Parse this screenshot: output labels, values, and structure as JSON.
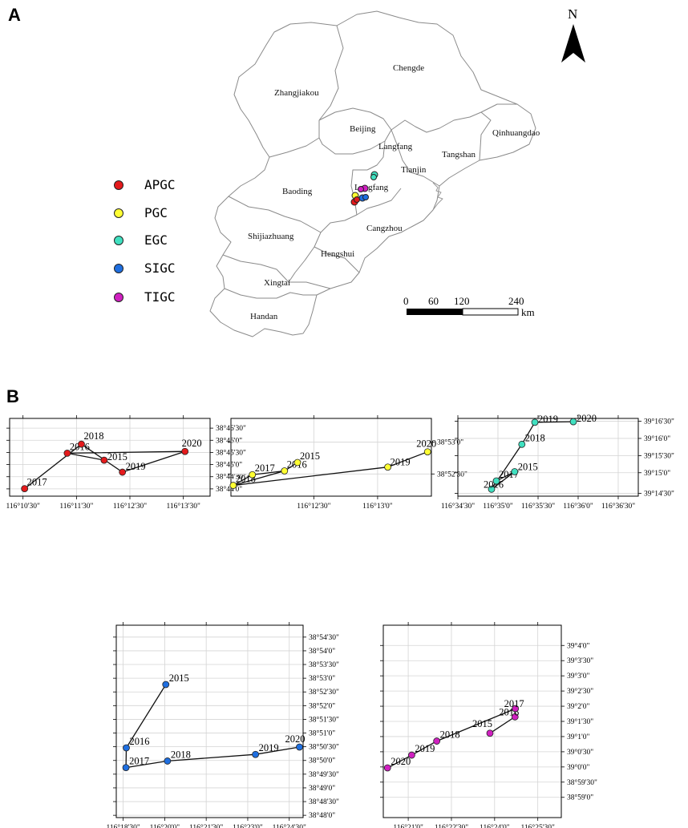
{
  "panel_labels": {
    "a": "A",
    "b": "B"
  },
  "north_label": "N",
  "regions": [
    "Chengde",
    "Zhangjiakou",
    "Beijing",
    "Langfang",
    "Qinhuangdao",
    "Tangshan",
    "Tianjin",
    "Langfang",
    "Baoding",
    "Cangzhou",
    "Shijiazhuang",
    "Hengshui",
    "Xingtai",
    "Handan"
  ],
  "legend": [
    {
      "label": "APGC",
      "color": "#e41a1c"
    },
    {
      "label": "PGC",
      "color": "#ffff33"
    },
    {
      "label": "EGC",
      "color": "#40e0c0"
    },
    {
      "label": "SIGC",
      "color": "#1f6fe0"
    },
    {
      "label": "TIGC",
      "color": "#d020c0"
    }
  ],
  "scale_bar": {
    "ticks": [
      "0",
      "60",
      "120",
      "240"
    ],
    "unit": "km"
  },
  "chart_data": [
    {
      "type": "line",
      "series": "APGC",
      "color": "#e41a1c",
      "xlim": [
        116.17083,
        116.23333
      ],
      "ylim": [
        38.72833,
        38.78167
      ],
      "xticks": [
        [
          116.175,
          "116°10'30\""
        ],
        [
          116.19167,
          "116°11'30\""
        ],
        [
          116.20833,
          "116°12'30\""
        ],
        [
          116.225,
          "116°13'30\""
        ]
      ],
      "yticks": [
        [
          38.73333,
          "38°44'0\""
        ],
        [
          38.74167,
          "38°44'30\""
        ],
        [
          38.75,
          "38°45'0\""
        ],
        [
          38.75833,
          "38°45'30\""
        ],
        [
          38.76667,
          "38°46'0\""
        ],
        [
          38.775,
          "38°46'30\""
        ]
      ],
      "points": [
        {
          "year": "2017",
          "x": 116.1755,
          "y": 38.7335
        },
        {
          "year": "2016",
          "x": 116.1888,
          "y": 38.7578
        },
        {
          "year": "2018",
          "x": 116.1932,
          "y": 38.764
        },
        {
          "year": "2015",
          "x": 116.2003,
          "y": 38.753
        },
        {
          "year": "2019",
          "x": 116.206,
          "y": 38.7448
        },
        {
          "year": "2020",
          "x": 116.2255,
          "y": 38.759
        }
      ],
      "path_order": [
        "2017",
        "2018",
        "2019",
        "2020",
        "2016",
        "2015"
      ]
    },
    {
      "type": "line",
      "series": "PGC",
      "color": "#ffff33",
      "xlim": [
        116.1975,
        116.2237
      ],
      "ylim": [
        38.86917,
        38.88958
      ],
      "xticks": [
        [
          116.20833,
          "116°12'30\""
        ],
        [
          116.21667,
          "116°13'0\""
        ]
      ],
      "yticks": [
        [
          38.875,
          "38°52'30\""
        ],
        [
          38.88333,
          "38°53'0\""
        ]
      ],
      "points": [
        {
          "year": "2018",
          "x": 116.1978,
          "y": 38.872
        },
        {
          "year": "2017",
          "x": 116.2003,
          "y": 38.8748
        },
        {
          "year": "2016",
          "x": 116.2045,
          "y": 38.8758
        },
        {
          "year": "2015",
          "x": 116.2062,
          "y": 38.878
        },
        {
          "year": "2019",
          "x": 116.218,
          "y": 38.8768
        },
        {
          "year": "2020",
          "x": 116.2232,
          "y": 38.8808
        }
      ],
      "path_order": [
        "2018",
        "2017",
        "2016",
        "2015",
        "2016",
        "2018",
        "2019",
        "2020"
      ]
    },
    {
      "type": "line",
      "series": "EGC",
      "color": "#40e0c0",
      "xlim": [
        116.575,
        116.6125
      ],
      "ylim": [
        39.23861,
        39.27639
      ],
      "xticks": [
        [
          116.575,
          "116°34'30\""
        ],
        [
          116.58333,
          "116°35'0\""
        ],
        [
          116.59167,
          "116°35'30\""
        ],
        [
          116.6,
          "116°36'0\""
        ],
        [
          116.60833,
          "116°36'30\""
        ]
      ],
      "yticks": [
        [
          39.24,
          "39°14'30\""
        ],
        [
          39.25,
          "39°15'0\""
        ],
        [
          39.25833,
          "39°15'30\""
        ],
        [
          39.26667,
          "39°16'0\""
        ],
        [
          39.275,
          "39°16'30\""
        ]
      ],
      "points": [
        {
          "year": "2016",
          "x": 116.582,
          "y": 39.242
        },
        {
          "year": "2017",
          "x": 116.583,
          "y": 39.246
        },
        {
          "year": "2015",
          "x": 116.5868,
          "y": 39.2505
        },
        {
          "year": "2018",
          "x": 116.5883,
          "y": 39.2638
        },
        {
          "year": "2019",
          "x": 116.591,
          "y": 39.2745
        },
        {
          "year": "2020",
          "x": 116.599,
          "y": 39.2748
        }
      ],
      "path_order": [
        "2016",
        "2017",
        "2015",
        "2016",
        "2018",
        "2019",
        "2020"
      ]
    },
    {
      "type": "line",
      "series": "SIGC",
      "color": "#1f6fe0",
      "xlim": [
        116.30417,
        116.41667
      ],
      "ylim": [
        38.79861,
        38.91556
      ],
      "xticks": [
        [
          116.30833,
          "116°18'30\""
        ],
        [
          116.33333,
          "116°20'0\""
        ],
        [
          116.35833,
          "116°21'30\""
        ],
        [
          116.38333,
          "116°23'0\""
        ],
        [
          116.40833,
          "116°24'30\""
        ]
      ],
      "yticks": [
        [
          38.8,
          "38°48'0\""
        ],
        [
          38.80833,
          "38°48'30\""
        ],
        [
          38.81667,
          "38°49'0\""
        ],
        [
          38.825,
          "38°49'30\""
        ],
        [
          38.83333,
          "38°50'0\""
        ],
        [
          38.84167,
          "38°50'30\""
        ],
        [
          38.85,
          "38°51'0\""
        ],
        [
          38.85833,
          "38°51'30\""
        ],
        [
          38.86667,
          "38°52'0\""
        ],
        [
          38.875,
          "38°52'30\""
        ],
        [
          38.88333,
          "38°53'0\""
        ],
        [
          38.89167,
          "38°53'30\""
        ],
        [
          38.9,
          "38°54'0\""
        ],
        [
          38.90833,
          "38°54'30\""
        ]
      ],
      "points": [
        {
          "year": "2015",
          "x": 116.334,
          "y": 38.8795
        },
        {
          "year": "2016",
          "x": 116.3102,
          "y": 38.841
        },
        {
          "year": "2017",
          "x": 116.31,
          "y": 38.829
        },
        {
          "year": "2018",
          "x": 116.335,
          "y": 38.833
        },
        {
          "year": "2019",
          "x": 116.388,
          "y": 38.837
        },
        {
          "year": "2020",
          "x": 116.4145,
          "y": 38.8415
        }
      ],
      "path_order": [
        "2015",
        "2016",
        "2017",
        "2018",
        "2019",
        "2020"
      ]
    },
    {
      "type": "line",
      "series": "TIGC",
      "color": "#d020c0",
      "xlim": [
        116.33556,
        116.43861
      ],
      "ylim": [
        38.97222,
        39.07778
      ],
      "xticks": [
        [
          116.35,
          "116°21'0\""
        ],
        [
          116.375,
          "116°22'30\""
        ],
        [
          116.4,
          "116°24'0\""
        ],
        [
          116.425,
          "116°25'30\""
        ]
      ],
      "yticks": [
        [
          38.98333,
          "38°59'0\""
        ],
        [
          38.99167,
          "38°59'30\""
        ],
        [
          39.0,
          "39°0'0\""
        ],
        [
          39.00833,
          "39°0'30\""
        ],
        [
          39.01667,
          "39°1'0\""
        ],
        [
          39.025,
          "39°1'30\""
        ],
        [
          39.03333,
          "39°2'0\""
        ],
        [
          39.04167,
          "39°2'30\""
        ],
        [
          39.05,
          "39°3'0\""
        ],
        [
          39.05833,
          "39°3'30\""
        ],
        [
          39.06667,
          "39°4'0\""
        ]
      ],
      "points": [
        {
          "year": "2020",
          "x": 116.338,
          "y": 38.9995
        },
        {
          "year": "2019",
          "x": 116.352,
          "y": 39.0065
        },
        {
          "year": "2018",
          "x": 116.3665,
          "y": 39.0142
        },
        {
          "year": "2015",
          "x": 116.3973,
          "y": 39.0185
        },
        {
          "year": "2016",
          "x": 116.4118,
          "y": 39.0275
        },
        {
          "year": "2017",
          "x": 116.412,
          "y": 39.032
        }
      ],
      "path_order": [
        "2020",
        "2019",
        "2018",
        "2017",
        "2016",
        "2015"
      ]
    }
  ]
}
